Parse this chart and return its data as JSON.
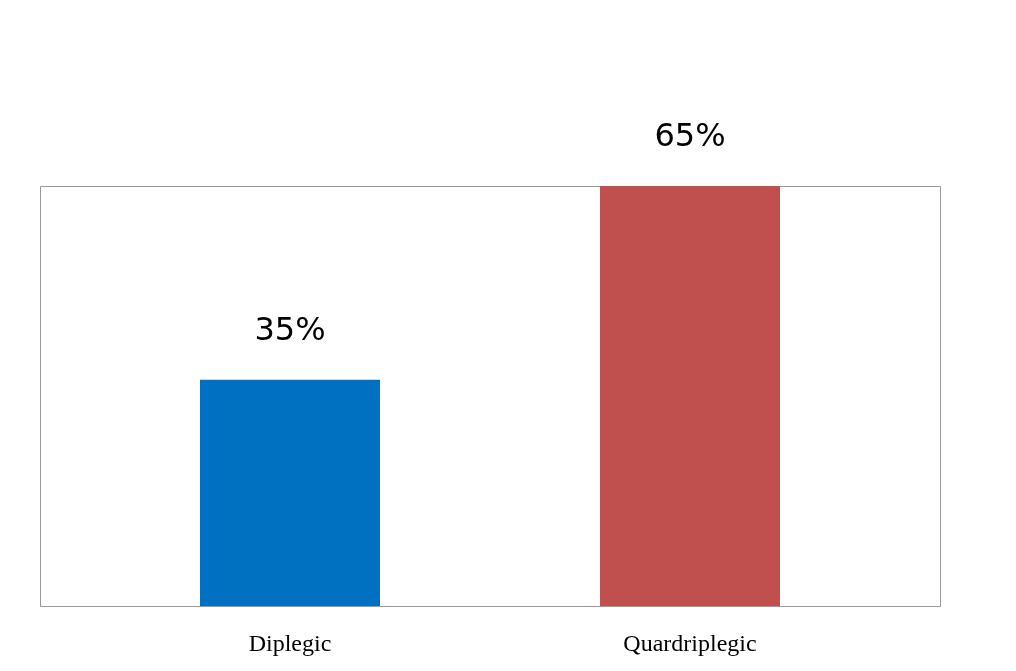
{
  "chart_data": {
    "type": "bar",
    "categories": [
      "Diplegic",
      "Quardriplegic"
    ],
    "values": [
      35,
      65
    ],
    "colors": [
      "#0070c0",
      "#c0504d"
    ],
    "value_labels": [
      "35%",
      "65%"
    ]
  }
}
